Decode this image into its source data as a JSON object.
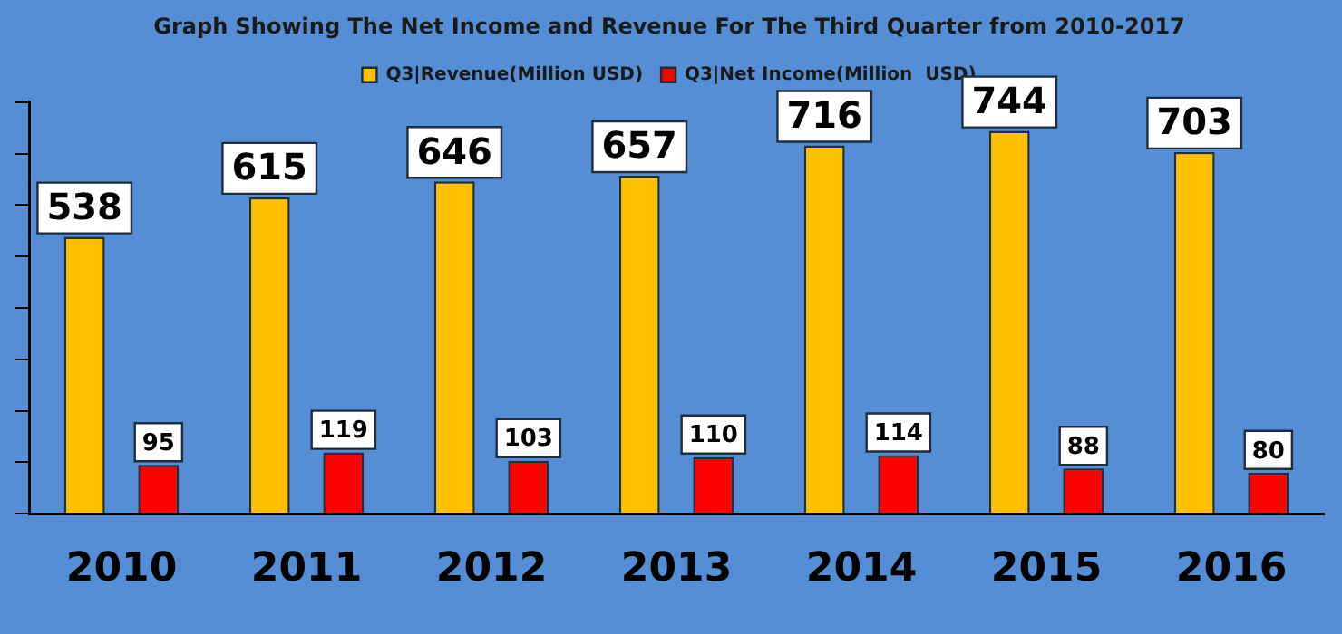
{
  "chart_data": {
    "type": "bar",
    "title": "Graph Showing The Net Income and Revenue For The Third Quarter from 2010-2017",
    "categories": [
      "2010",
      "2011",
      "2012",
      "2013",
      "2014",
      "2015",
      "2016"
    ],
    "series": [
      {
        "name": "Q3|Revenue(Million USD)",
        "color": "#ffc000",
        "values": [
          538,
          615,
          646,
          657,
          716,
          744,
          703
        ]
      },
      {
        "name": "Q3|Net Income(Million  USD)",
        "color": "#ff0000",
        "values": [
          95,
          119,
          103,
          110,
          114,
          88,
          80
        ]
      }
    ],
    "tick_labels": "x",
    "grid": false,
    "legend": "top",
    "data_labels": true
  }
}
